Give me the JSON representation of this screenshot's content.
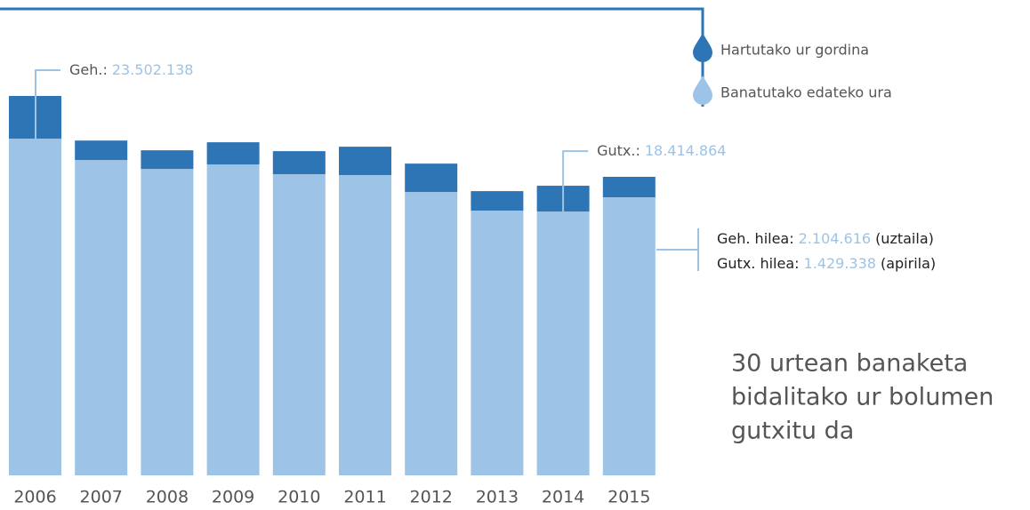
{
  "chart_data": {
    "type": "bar",
    "stacked": true,
    "categories": [
      "2006",
      "2007",
      "2008",
      "2009",
      "2010",
      "2011",
      "2012",
      "2013",
      "2014",
      "2015"
    ],
    "series": [
      {
        "name": "Banatutako edateko ura",
        "color": "#9dc3e6",
        "values": [
          23502138,
          22010000,
          21390000,
          21700000,
          21020000,
          20960000,
          19780000,
          18480000,
          18414864,
          19410000
        ]
      },
      {
        "name": "Hartutako ur gordina",
        "color": "#2e75b6",
        "values": [
          2980000,
          1360000,
          1300000,
          1550000,
          1610000,
          1980000,
          1980000,
          1360000,
          1800000,
          1430000
        ]
      }
    ],
    "annotations": [
      {
        "label": "Geh.:",
        "value": "23.502.138",
        "category": 0
      },
      {
        "label": "Gutx.:",
        "value": "18.414.864",
        "category": 8
      }
    ],
    "notes": [
      {
        "label": "Geh. hilea:",
        "value": "2.104.616",
        "suffix": "(uztaila)"
      },
      {
        "label": "Gutx.  hilea:",
        "value": "1.429.338",
        "suffix": "(apirila)"
      }
    ],
    "text": [
      "30 urtean  banaketa",
      "bidalitako ur bolumen",
      "gutxitu da"
    ]
  }
}
